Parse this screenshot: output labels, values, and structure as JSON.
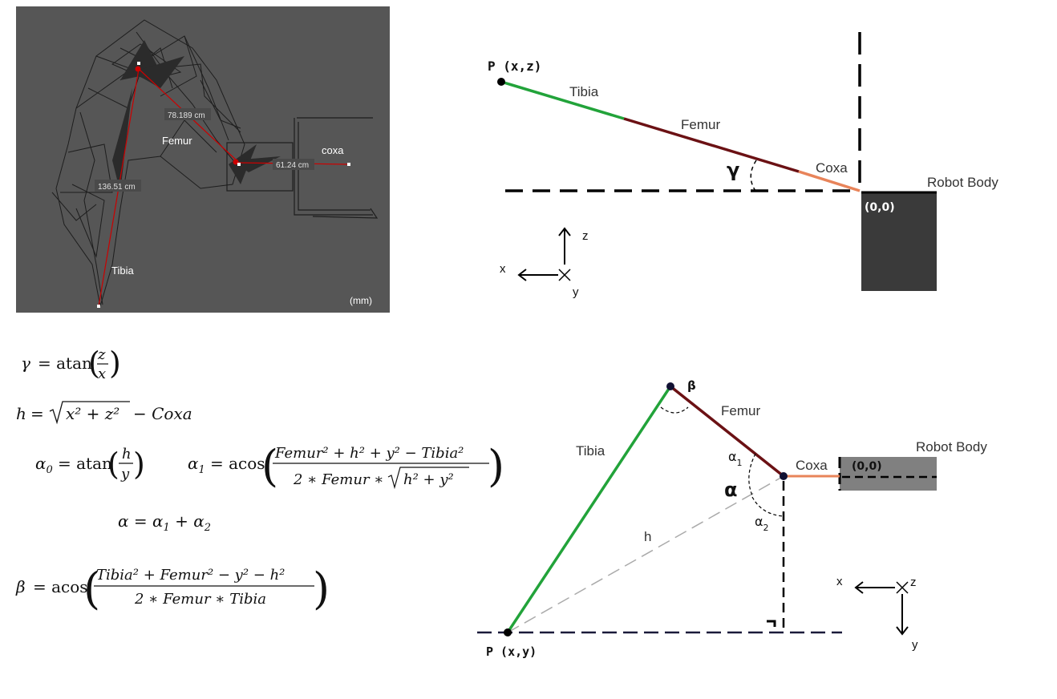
{
  "cad_panel": {
    "femur_label": "Femur",
    "coxa_label": "coxa",
    "tibia_label": "Tibia",
    "units": "(mm)",
    "dim_femur": "78.189 cm",
    "dim_coxa": "61.24 cm",
    "dim_tibia": "136.51 cm",
    "bg_color": "#565656",
    "dim_color": "#cc0000"
  },
  "top_diagram": {
    "point_label": "P (x,z)",
    "tibia_label": "Tibia",
    "femur_label": "Femur",
    "coxa_label": "Coxa",
    "angle_label": "γ",
    "body_label": "Robot Body",
    "origin_label": "(0,0)",
    "axis_x": "x",
    "axis_z": "z",
    "axis_y": "y",
    "tibia_color": "#22a33a",
    "femur_color": "#6b1114",
    "coxa_color": "#e8845a",
    "body_color": "#3a3a3a"
  },
  "bottom_diagram": {
    "point_label": "P (x,y)",
    "tibia_label": "Tibia",
    "femur_label": "Femur",
    "coxa_label": "Coxa",
    "beta_label": "β",
    "alpha_label": "α",
    "alpha1_label": "α",
    "alpha1_sub": "1",
    "alpha2_label": "α",
    "alpha2_sub": "2",
    "h_label": "h",
    "body_label": "Robot Body",
    "origin_label": "(0,0)",
    "axis_x": "x",
    "axis_z": "z",
    "axis_y": "y",
    "body_color": "#808080"
  },
  "equations": {
    "gamma": {
      "lhs": "γ",
      "eq": "= atan",
      "num": "z",
      "den": "x"
    },
    "h": {
      "lhs": "h",
      "eq": "=",
      "rad": "x² +  z²",
      "tail": "− Coxa"
    },
    "alpha0": {
      "lhs": "α",
      "sub": "0",
      "eq": "= atan",
      "num": "h",
      "den": "y"
    },
    "alpha1": {
      "lhs": "α",
      "sub": "1",
      "eq": "= acos",
      "num": "Femur² + h² + y² − Tibia²",
      "den_a": "2 ∗ Femur ∗",
      "den_rad": "h² +  y²"
    },
    "alpha": {
      "text": "α = α",
      "s1": "1",
      "plus": " +  α",
      "s2": "2"
    },
    "beta": {
      "lhs": "β",
      "eq": "= acos",
      "num": "Tibia² +  Femur² − y² − h²",
      "den": "2 ∗ Femur ∗ Tibia"
    }
  }
}
